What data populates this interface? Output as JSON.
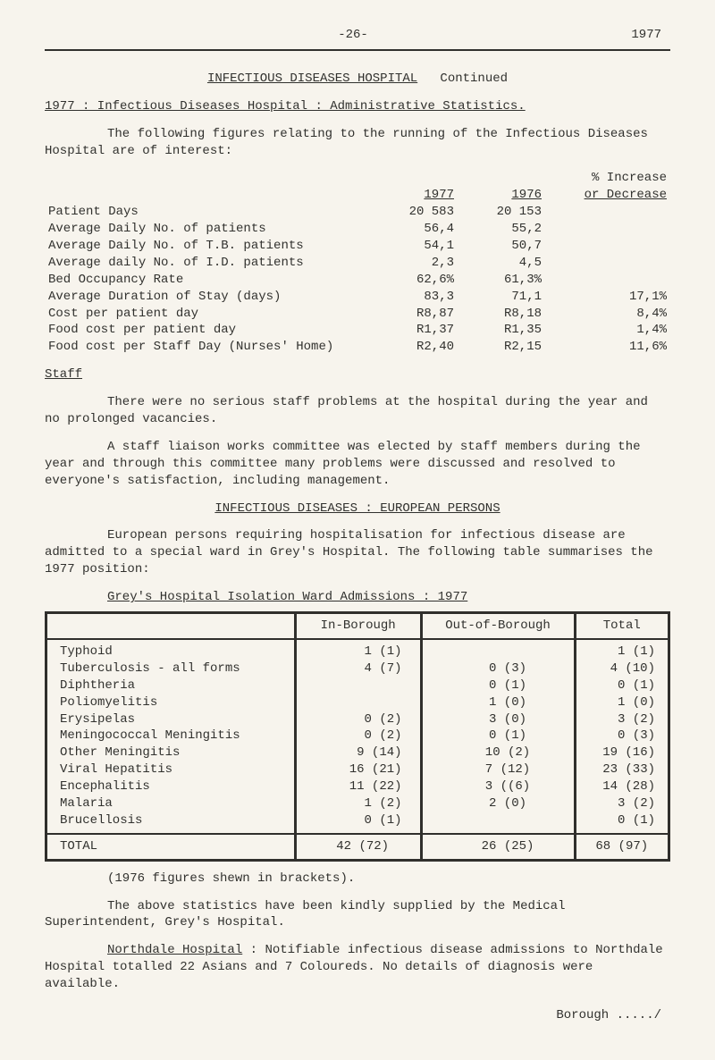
{
  "header": {
    "page_number": "-26-",
    "year": "1977"
  },
  "title1": "INFECTIOUS DISEASES HOSPITAL",
  "title1_cont": "Continued",
  "subtitle1": "1977 : Infectious Diseases Hospital : Administrative Statistics.",
  "intro1": "The following figures relating to the running of the Infectious Diseases Hospital are of interest:",
  "stats": {
    "head_1977": "1977",
    "head_1976": "1976",
    "head_inc1": "% Increase",
    "head_inc2": "or Decrease",
    "rows": [
      {
        "label": "Patient Days",
        "y1977": "20 583",
        "y1976": "20 153",
        "inc": ""
      },
      {
        "label": "Average Daily No. of patients",
        "y1977": "56,4",
        "y1976": "55,2",
        "inc": ""
      },
      {
        "label": "Average Daily No. of T.B. patients",
        "y1977": "54,1",
        "y1976": "50,7",
        "inc": ""
      },
      {
        "label": "Average daily No. of I.D. patients",
        "y1977": "2,3",
        "y1976": "4,5",
        "inc": ""
      },
      {
        "label": "Bed Occupancy Rate",
        "y1977": "62,6%",
        "y1976": "61,3%",
        "inc": ""
      },
      {
        "label": "Average Duration of Stay (days)",
        "y1977": "83,3",
        "y1976": "71,1",
        "inc": "17,1%"
      },
      {
        "label": "Cost per patient day",
        "y1977": "R8,87",
        "y1976": "R8,18",
        "inc": "8,4%"
      },
      {
        "label": "Food cost per patient day",
        "y1977": "R1,37",
        "y1976": "R1,35",
        "inc": "1,4%"
      },
      {
        "label": "Food cost per Staff Day (Nurses' Home)",
        "y1977": "R2,40",
        "y1976": "R2,15",
        "inc": "11,6%"
      }
    ]
  },
  "staff_heading": "Staff",
  "staff_p1": "There were no serious staff problems at the hospital during the year and no prolonged vacancies.",
  "staff_p2": "A staff liaison works committee was elected by staff members during the year and through this committee many problems were discussed and resolved to everyone's satisfaction, including management.",
  "section2_title": "INFECTIOUS DISEASES : EUROPEAN PERSONS",
  "section2_p": "European persons requiring hospitalisation for infectious disease are admitted to a special ward in Grey's Hospital.    The following table summarises the 1977 position:",
  "table2_title": "Grey's Hospital Isolation Ward Admissions : 1977",
  "iso": {
    "head_in": "In-Borough",
    "head_out": "Out-of-Borough",
    "head_total": "Total",
    "rows": [
      {
        "name": "Typhoid",
        "in_n": "1",
        "in_p": "(1)",
        "out_n": "",
        "out_p": "",
        "tot_n": "1",
        "tot_p": "(1)"
      },
      {
        "name": "Tuberculosis - all forms",
        "in_n": "4",
        "in_p": "(7)",
        "out_n": "0",
        "out_p": "(3)",
        "tot_n": "4",
        "tot_p": "(10)"
      },
      {
        "name": "Diphtheria",
        "in_n": "",
        "in_p": "",
        "out_n": "0",
        "out_p": "(1)",
        "tot_n": "0",
        "tot_p": "(1)"
      },
      {
        "name": "Poliomyelitis",
        "in_n": "",
        "in_p": "",
        "out_n": "1",
        "out_p": "(0)",
        "tot_n": "1",
        "tot_p": "(0)"
      },
      {
        "name": "Erysipelas",
        "in_n": "0",
        "in_p": "(2)",
        "out_n": "3",
        "out_p": "(0)",
        "tot_n": "3",
        "tot_p": "(2)"
      },
      {
        "name": "Meningococcal Meningitis",
        "in_n": "0",
        "in_p": "(2)",
        "out_n": "0",
        "out_p": "(1)",
        "tot_n": "0",
        "tot_p": "(3)"
      },
      {
        "name": "Other Meningitis",
        "in_n": "9",
        "in_p": "(14)",
        "out_n": "10",
        "out_p": "(2)",
        "tot_n": "19",
        "tot_p": "(16)"
      },
      {
        "name": "Viral Hepatitis",
        "in_n": "16",
        "in_p": "(21)",
        "out_n": "7",
        "out_p": "(12)",
        "tot_n": "23",
        "tot_p": "(33)"
      },
      {
        "name": "Encephalitis",
        "in_n": "11",
        "in_p": "(22)",
        "out_n": "3",
        "out_p": "((6)",
        "tot_n": "14",
        "tot_p": "(28)"
      },
      {
        "name": "Malaria",
        "in_n": "1",
        "in_p": "(2)",
        "out_n": "2",
        "out_p": "(0)",
        "tot_n": "3",
        "tot_p": "(2)"
      },
      {
        "name": "Brucellosis",
        "in_n": "0",
        "in_p": "(1)",
        "out_n": "",
        "out_p": "",
        "tot_n": "0",
        "tot_p": "(1)"
      }
    ],
    "total_label": "TOTAL",
    "total_in": "42 (72)",
    "total_out": "26 (25)",
    "total_tot": "68 (97)"
  },
  "footnote1": "(1976 figures shewn in brackets).",
  "footnote2": "The above statistics have been kindly supplied by the Medical Superintendent, Grey's Hospital.",
  "northdale_label": "Northdale Hospital",
  "northdale_text": " :  Notifiable infectious disease admissions to Northdale Hospital totalled 22 Asians and 7 Coloureds.  No details of diagnosis were available.",
  "footer": "Borough ...../"
}
